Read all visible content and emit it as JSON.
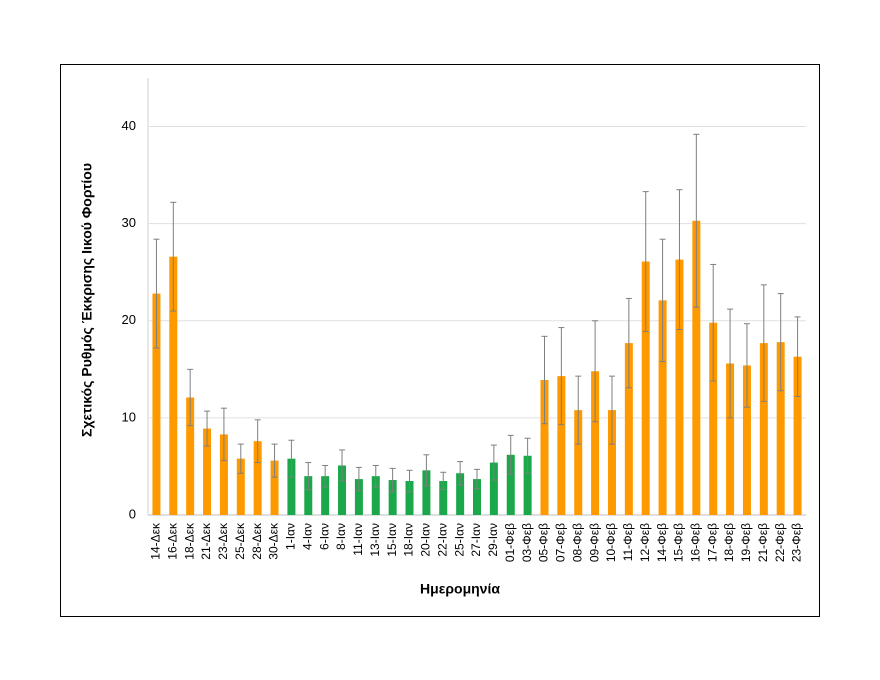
{
  "chart_data": {
    "type": "bar",
    "x_label": "Ημερομηνία",
    "y_label": "Σχετικός Ρυθμός Έκκρισης Ιικού Φορτίου",
    "categories": [
      "14-Δεκ",
      "16-Δεκ",
      "18-Δεκ",
      "21-Δεκ",
      "23-Δεκ",
      "25-Δεκ",
      "28-Δεκ",
      "30-Δεκ",
      "1-Ιαν",
      "4-Ιαν",
      "6-Ιαν",
      "8-Ιαν",
      "11-Ιαν",
      "13-Ιαν",
      "15-Ιαν",
      "18-Ιαν",
      "20-Ιαν",
      "22-Ιαν",
      "25-Ιαν",
      "27-Ιαν",
      "29-Ιαν",
      "01-Φεβ",
      "03-Φεβ",
      "05-Φεβ",
      "07-Φεβ",
      "08-Φεβ",
      "09-Φεβ",
      "10-Φεβ",
      "11-Φεβ",
      "12-Φεβ",
      "14-Φεβ",
      "15-Φεβ",
      "16-Φεβ",
      "17-Φεβ",
      "18-Φεβ",
      "19-Φεβ",
      "21-Φεβ",
      "22-Φεβ",
      "23-Φεβ"
    ],
    "values": [
      22.8,
      26.6,
      12.1,
      8.9,
      8.3,
      5.8,
      7.6,
      5.6,
      5.8,
      4.0,
      4.0,
      5.1,
      3.7,
      4.0,
      3.6,
      3.5,
      4.6,
      3.5,
      4.3,
      3.7,
      5.4,
      6.2,
      6.1,
      13.9,
      14.3,
      10.8,
      14.8,
      10.8,
      17.7,
      26.1,
      22.1,
      26.3,
      30.3,
      19.8,
      15.6,
      15.4,
      17.7,
      17.8,
      16.3
    ],
    "errors": [
      5.6,
      5.6,
      2.9,
      1.8,
      2.7,
      1.5,
      2.2,
      1.7,
      1.9,
      1.4,
      1.1,
      1.6,
      1.2,
      1.1,
      1.2,
      1.1,
      1.6,
      0.9,
      1.2,
      1.0,
      1.8,
      2.0,
      1.8,
      4.5,
      5.0,
      3.5,
      5.2,
      3.5,
      4.6,
      7.2,
      6.3,
      7.2,
      8.9,
      6.0,
      5.6,
      4.3,
      6.0,
      5.0,
      4.1
    ],
    "colors": [
      "#ff9900",
      "#ff9900",
      "#ff9900",
      "#ff9900",
      "#ff9900",
      "#ff9900",
      "#ff9900",
      "#ff9900",
      "#1aa84a",
      "#1aa84a",
      "#1aa84a",
      "#1aa84a",
      "#1aa84a",
      "#1aa84a",
      "#1aa84a",
      "#1aa84a",
      "#1aa84a",
      "#1aa84a",
      "#1aa84a",
      "#1aa84a",
      "#1aa84a",
      "#1aa84a",
      "#1aa84a",
      "#ff9900",
      "#ff9900",
      "#ff9900",
      "#ff9900",
      "#ff9900",
      "#ff9900",
      "#ff9900",
      "#ff9900",
      "#ff9900",
      "#ff9900",
      "#ff9900",
      "#ff9900",
      "#ff9900",
      "#ff9900",
      "#ff9900",
      "#ff9900"
    ],
    "ylim": [
      0,
      45
    ],
    "yticks": [
      0,
      10,
      20,
      30,
      40
    ],
    "grid": true
  }
}
